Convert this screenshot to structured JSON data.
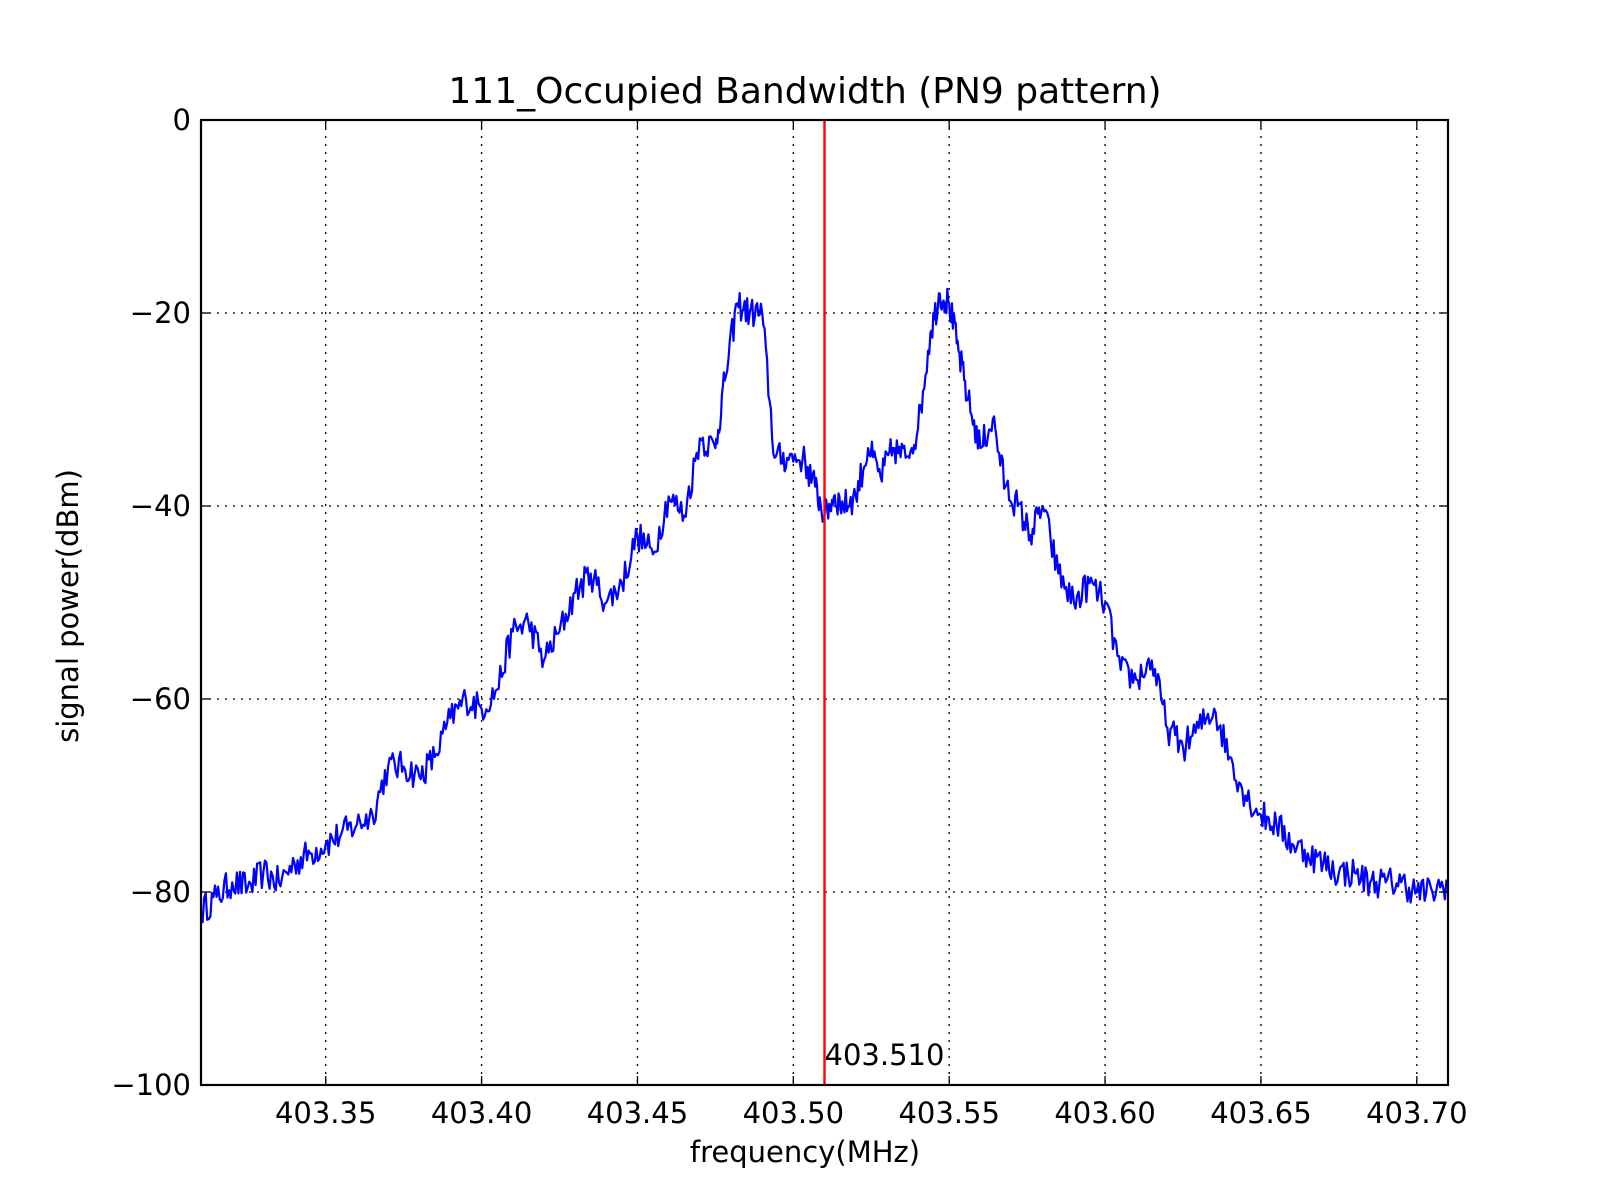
{
  "chart_data": {
    "type": "line",
    "title": "111_Occupied Bandwidth (PN9 pattern)",
    "xlabel": "frequency(MHz)",
    "ylabel": "signal power(dBm)",
    "xlim": [
      403.31,
      403.71
    ],
    "ylim": [
      -100,
      0
    ],
    "x_ticks": [
      403.35,
      403.4,
      403.45,
      403.5,
      403.55,
      403.6,
      403.65,
      403.7
    ],
    "x_tick_labels": [
      "403.35",
      "403.40",
      "403.45",
      "403.50",
      "403.55",
      "403.60",
      "403.65",
      "403.70"
    ],
    "y_ticks": [
      -100,
      -80,
      -60,
      -40,
      -20,
      0
    ],
    "y_tick_labels": [
      "−100",
      "−80",
      "−60",
      "−40",
      "−20",
      "0"
    ],
    "grid": true,
    "series": [
      {
        "color": "#0000ff",
        "x": [
          403.31,
          403.315,
          403.32,
          403.325,
          403.33,
          403.335,
          403.34,
          403.345,
          403.35,
          403.355,
          403.36,
          403.365,
          403.37,
          403.375,
          403.38,
          403.385,
          403.39,
          403.395,
          403.4,
          403.405,
          403.41,
          403.415,
          403.42,
          403.425,
          403.43,
          403.435,
          403.44,
          403.445,
          403.45,
          403.455,
          403.46,
          403.465,
          403.47,
          403.475,
          403.478,
          403.482,
          403.486,
          403.49,
          403.494,
          403.498,
          403.503,
          403.507,
          403.51,
          403.513,
          403.516,
          403.52,
          403.524,
          403.528,
          403.532,
          403.536,
          403.54,
          403.544,
          403.547,
          403.55,
          403.553,
          403.556,
          403.56,
          403.564,
          403.568,
          403.572,
          403.576,
          403.58,
          403.585,
          403.59,
          403.595,
          403.6,
          403.605,
          403.61,
          403.615,
          403.62,
          403.625,
          403.63,
          403.635,
          403.64,
          403.645,
          403.65,
          403.655,
          403.66,
          403.665,
          403.67,
          403.675,
          403.68,
          403.685,
          403.69,
          403.695,
          403.7,
          403.705,
          403.71
        ],
        "y": [
          -82,
          -80.5,
          -79,
          -79.5,
          -78,
          -79,
          -77,
          -76,
          -75,
          -74,
          -73,
          -72,
          -67,
          -67,
          -68,
          -66,
          -62,
          -60,
          -61,
          -59,
          -53,
          -52,
          -56,
          -53,
          -49,
          -47,
          -50,
          -48,
          -43,
          -45,
          -39,
          -41,
          -33,
          -34,
          -27,
          -19,
          -20,
          -20,
          -35,
          -35,
          -35,
          -38,
          -41,
          -39,
          -40,
          -39,
          -34,
          -37,
          -34,
          -35,
          -32,
          -22,
          -18,
          -19,
          -24,
          -29,
          -34,
          -31,
          -38,
          -40,
          -43,
          -40,
          -47,
          -50,
          -48,
          -50,
          -57,
          -58,
          -56,
          -63,
          -65,
          -63,
          -61,
          -66,
          -70,
          -72,
          -73,
          -75,
          -76,
          -77,
          -78,
          -78,
          -79,
          -79,
          -79,
          -80,
          -80,
          -79
        ]
      }
    ],
    "marker": {
      "x": 403.51,
      "label": "403.510",
      "color": "#ff0000"
    }
  }
}
